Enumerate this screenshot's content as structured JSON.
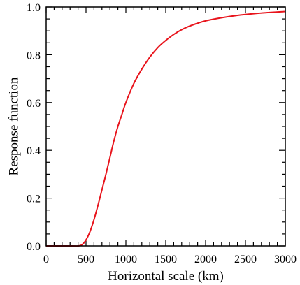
{
  "chart_data": {
    "type": "line",
    "title": "",
    "xlabel": "Horizontal scale (km)",
    "ylabel": "Response function",
    "xlim": [
      0,
      3000
    ],
    "ylim": [
      0.0,
      1.0
    ],
    "grid": false,
    "legend": "none",
    "x_ticks": [
      0,
      500,
      1000,
      1500,
      2000,
      2500,
      3000
    ],
    "x_tick_labels": [
      "0",
      "500",
      "1000",
      "1500",
      "2000",
      "2500",
      "3000"
    ],
    "y_ticks": [
      0.0,
      0.2,
      0.4,
      0.6,
      0.8,
      1.0
    ],
    "y_tick_labels": [
      "0.0",
      "0.2",
      "0.4",
      "0.6",
      "0.8",
      "1.0"
    ],
    "series": [
      {
        "color": "#e8141c",
        "x": [
          0,
          100,
          200,
          300,
          400,
          450,
          500,
          550,
          600,
          650,
          700,
          750,
          800,
          850,
          900,
          950,
          1000,
          1100,
          1200,
          1300,
          1400,
          1500,
          1600,
          1700,
          1800,
          1900,
          2000,
          2200,
          2400,
          2600,
          2800,
          3000
        ],
        "y": [
          0.0,
          0.0,
          0.0,
          0.0,
          0.0,
          0.005,
          0.025,
          0.06,
          0.11,
          0.17,
          0.235,
          0.3,
          0.37,
          0.44,
          0.5,
          0.55,
          0.6,
          0.68,
          0.74,
          0.79,
          0.83,
          0.86,
          0.885,
          0.905,
          0.92,
          0.932,
          0.942,
          0.955,
          0.965,
          0.972,
          0.977,
          0.981
        ]
      }
    ]
  }
}
